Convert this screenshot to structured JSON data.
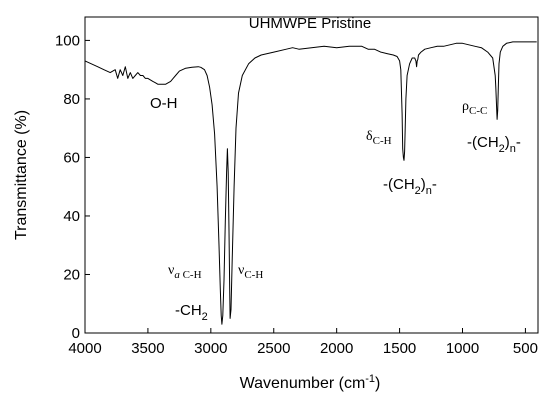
{
  "chart_data": {
    "type": "line",
    "title": "UHMWPE Pristine",
    "xlabel": "Wavenumber (cm",
    "xlabel_sup": "-1",
    "xlabel_end": ")",
    "ylabel": "Transmittance (%)",
    "xlim": [
      4000,
      400
    ],
    "ylim": [
      0,
      108
    ],
    "x_ticks": [
      4000,
      3500,
      3000,
      2500,
      2000,
      1500,
      1000,
      500
    ],
    "y_ticks": [
      0,
      20,
      40,
      60,
      80,
      100
    ],
    "grid": false,
    "series": [
      {
        "x": [
          4000,
          3950,
          3900,
          3850,
          3800,
          3760,
          3740,
          3720,
          3700,
          3680,
          3660,
          3640,
          3620,
          3600,
          3580,
          3560,
          3540,
          3520,
          3500,
          3480,
          3460,
          3440,
          3420,
          3400,
          3380,
          3360,
          3340,
          3320,
          3300,
          3280,
          3250,
          3200,
          3150,
          3100,
          3080,
          3050,
          3030,
          3010,
          2990,
          2970,
          2950,
          2935,
          2925,
          2918,
          2912,
          2905,
          2895,
          2885,
          2875,
          2868,
          2862,
          2856,
          2850,
          2847,
          2840,
          2830,
          2815,
          2800,
          2780,
          2750,
          2700,
          2650,
          2600,
          2500,
          2400,
          2350,
          2300,
          2200,
          2100,
          2000,
          1900,
          1800,
          1750,
          1700,
          1650,
          1600,
          1550,
          1520,
          1500,
          1490,
          1480,
          1475,
          1470,
          1465,
          1460,
          1455,
          1450,
          1440,
          1420,
          1400,
          1380,
          1370,
          1365,
          1360,
          1355,
          1350,
          1330,
          1300,
          1250,
          1200,
          1150,
          1100,
          1050,
          1000,
          950,
          900,
          850,
          800,
          760,
          740,
          735,
          730,
          725,
          720,
          715,
          710,
          700,
          680,
          650,
          600,
          550,
          500,
          450,
          410
        ],
        "y": [
          93,
          92,
          91,
          90,
          89,
          90,
          87,
          90,
          88,
          91,
          87,
          89,
          87,
          88,
          89,
          88,
          88,
          87,
          87,
          86.5,
          86,
          85.5,
          85,
          85,
          85,
          85,
          85.5,
          86,
          87,
          88,
          89.5,
          90.5,
          90.8,
          91,
          90.8,
          90,
          88,
          84,
          78,
          68,
          50,
          30,
          15,
          6,
          3,
          6,
          18,
          38,
          55,
          63,
          55,
          35,
          15,
          5,
          8,
          25,
          50,
          70,
          82,
          88,
          92,
          94,
          95,
          96,
          97,
          97.5,
          97,
          97.5,
          98,
          97.5,
          98,
          98,
          97,
          97,
          96,
          95.5,
          95,
          94.5,
          93,
          90,
          75,
          63,
          60,
          59,
          62,
          70,
          80,
          88,
          92,
          94,
          94,
          93,
          91,
          93,
          93.5,
          95,
          96,
          97,
          97.5,
          98,
          98,
          98.5,
          99,
          99,
          98.5,
          98,
          97.5,
          96,
          94,
          88,
          84,
          78,
          73,
          76,
          85,
          92,
          96,
          98,
          99,
          99.5,
          99.5,
          99.5,
          99.5,
          99.5
        ]
      }
    ],
    "annotations": [
      {
        "name": "oh",
        "text": "O-H"
      },
      {
        "name": "vac-h",
        "main": "ν",
        "sub_i": "a",
        "sub": " C-H"
      },
      {
        "name": "ch2",
        "main": "-CH",
        "sub": "2"
      },
      {
        "name": "vc-h",
        "main": "ν",
        "sub": "C-H"
      },
      {
        "name": "dc-h",
        "main": "δ",
        "sub": "C-H"
      },
      {
        "name": "ch2n-1",
        "main": "-(CH",
        "sub": "2",
        "end": ")",
        "sub2": "n",
        "tail": "-"
      },
      {
        "name": "rcc",
        "main": "ρ",
        "sub": "C-C"
      },
      {
        "name": "ch2n-2",
        "main": "-(CH",
        "sub": "2",
        "end": ")",
        "sub2": "n",
        "tail": "-"
      }
    ]
  }
}
